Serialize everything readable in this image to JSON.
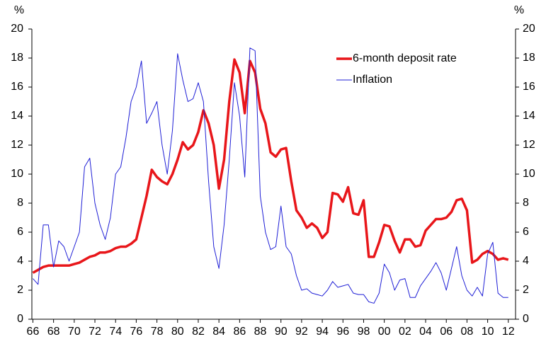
{
  "chart_data": {
    "type": "line",
    "ylabel": "%",
    "y2label": "%",
    "x": [
      1966,
      1966.5,
      1967,
      1967.5,
      1968,
      1968.5,
      1969,
      1969.5,
      1970,
      1970.5,
      1971,
      1971.5,
      1972,
      1972.5,
      1973,
      1973.5,
      1974,
      1974.5,
      1975,
      1975.5,
      1976,
      1976.5,
      1977,
      1977.5,
      1978,
      1978.5,
      1979,
      1979.5,
      1980,
      1980.5,
      1981,
      1981.5,
      1982,
      1982.5,
      1983,
      1983.5,
      1984,
      1984.5,
      1985,
      1985.5,
      1986,
      1986.5,
      1987,
      1987.5,
      1988,
      1988.5,
      1989,
      1989.5,
      1990,
      1990.5,
      1991,
      1991.5,
      1992,
      1992.5,
      1993,
      1993.5,
      1994,
      1994.5,
      1995,
      1995.5,
      1996,
      1996.5,
      1997,
      1997.5,
      1998,
      1998.5,
      1999,
      1999.5,
      2000,
      2000.5,
      2001,
      2001.5,
      2002,
      2002.5,
      2003,
      2003.5,
      2004,
      2004.5,
      2005,
      2005.5,
      2006,
      2006.5,
      2007,
      2007.5,
      2008,
      2008.5,
      2009,
      2009.5,
      2010,
      2010.5,
      2011,
      2011.5,
      2012
    ],
    "series": [
      {
        "name": "6-month deposit rate",
        "color": "#e8161a",
        "values": [
          3.2,
          3.4,
          3.6,
          3.7,
          3.7,
          3.7,
          3.7,
          3.7,
          3.8,
          3.9,
          4.1,
          4.3,
          4.4,
          4.6,
          4.6,
          4.7,
          4.9,
          5.0,
          5.0,
          5.2,
          5.5,
          7.0,
          8.5,
          10.3,
          9.8,
          9.5,
          9.3,
          10.0,
          11.0,
          12.2,
          11.7,
          12.0,
          12.9,
          14.4,
          13.5,
          12.0,
          9.0,
          11.0,
          15.0,
          17.9,
          17.0,
          14.2,
          17.8,
          17.0,
          14.5,
          13.5,
          11.5,
          11.2,
          11.7,
          11.8,
          9.5,
          7.5,
          7.0,
          6.3,
          6.6,
          6.3,
          5.6,
          6.0,
          8.7,
          8.6,
          8.1,
          9.1,
          7.3,
          7.2,
          8.2,
          4.3,
          4.3,
          5.3,
          6.5,
          6.4,
          5.4,
          4.6,
          5.5,
          5.5,
          5.0,
          5.1,
          6.1,
          6.5,
          6.9,
          6.9,
          7.0,
          7.4,
          8.2,
          8.3,
          7.5,
          3.9,
          4.1,
          4.5,
          4.7,
          4.5,
          4.1,
          4.2,
          4.1
        ]
      },
      {
        "name": "Inflation",
        "color": "#1f1fd6",
        "values": [
          2.8,
          2.4,
          6.5,
          6.5,
          3.6,
          5.4,
          5.0,
          4.0,
          5.0,
          6.0,
          10.5,
          11.1,
          8.0,
          6.5,
          5.5,
          7.0,
          10.0,
          10.5,
          12.5,
          15.0,
          16.0,
          17.8,
          13.5,
          14.2,
          15.0,
          12.0,
          10.0,
          13.0,
          18.3,
          16.5,
          15.0,
          15.2,
          16.3,
          15.0,
          9.5,
          5.0,
          3.5,
          6.5,
          11.0,
          16.3,
          14.0,
          9.8,
          18.7,
          18.5,
          8.5,
          6.0,
          4.8,
          5.0,
          7.8,
          5.0,
          4.5,
          3.0,
          2.0,
          2.1,
          1.8,
          1.7,
          1.6,
          2.0,
          2.6,
          2.2,
          2.3,
          2.4,
          1.8,
          1.7,
          1.7,
          1.2,
          1.1,
          1.8,
          3.8,
          3.2,
          2.0,
          2.7,
          2.8,
          1.5,
          1.5,
          2.3,
          2.8,
          3.3,
          3.9,
          3.2,
          2.0,
          3.5,
          5.0,
          3.0,
          2.0,
          1.6,
          2.2,
          1.6,
          4.5,
          5.3,
          1.8,
          1.5,
          1.5
        ]
      }
    ],
    "xlim": [
      1965.9,
      2012.7
    ],
    "xticks": [
      {
        "value": 1966,
        "label": "66"
      },
      {
        "value": 1968,
        "label": "68"
      },
      {
        "value": 1970,
        "label": "70"
      },
      {
        "value": 1972,
        "label": "72"
      },
      {
        "value": 1974,
        "label": "74"
      },
      {
        "value": 1976,
        "label": "76"
      },
      {
        "value": 1978,
        "label": "78"
      },
      {
        "value": 1980,
        "label": "80"
      },
      {
        "value": 1982,
        "label": "82"
      },
      {
        "value": 1984,
        "label": "84"
      },
      {
        "value": 1986,
        "label": "86"
      },
      {
        "value": 1988,
        "label": "88"
      },
      {
        "value": 1990,
        "label": "90"
      },
      {
        "value": 1992,
        "label": "92"
      },
      {
        "value": 1994,
        "label": "94"
      },
      {
        "value": 1996,
        "label": "96"
      },
      {
        "value": 1998,
        "label": "98"
      },
      {
        "value": 2000,
        "label": "00"
      },
      {
        "value": 2002,
        "label": "02"
      },
      {
        "value": 2004,
        "label": "04"
      },
      {
        "value": 2006,
        "label": "06"
      },
      {
        "value": 2008,
        "label": "08"
      },
      {
        "value": 2010,
        "label": "10"
      },
      {
        "value": 2012,
        "label": "12"
      }
    ],
    "ylim": [
      0,
      20
    ],
    "yticks": [
      0,
      2,
      4,
      6,
      8,
      10,
      12,
      14,
      16,
      18,
      20
    ],
    "y2lim": [
      0,
      20
    ],
    "y2ticks": [
      0,
      2,
      4,
      6,
      8,
      10,
      12,
      14,
      16,
      18,
      20
    ],
    "legend": "upper right",
    "grid": false
  }
}
